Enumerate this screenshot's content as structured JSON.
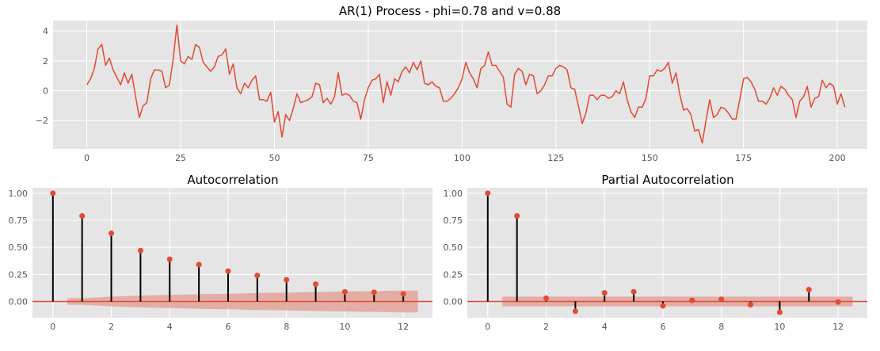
{
  "colors": {
    "background": "#e5e5e5",
    "grid": "#ffffff",
    "series": "#e24a33",
    "stem": "#000000",
    "confidence_band": "#e29a8f",
    "tick_text": "#555555"
  },
  "chart_data": [
    {
      "id": "ts",
      "type": "line",
      "title": "AR(1) Process - phi=0.78 and v=0.88",
      "xlim": [
        -9,
        208
      ],
      "ylim": [
        -3.9,
        4.7
      ],
      "xticks": [
        0,
        25,
        50,
        75,
        100,
        125,
        150,
        175,
        200
      ],
      "xtick_labels": [
        "0",
        "25",
        "50",
        "75",
        "100",
        "125",
        "150",
        "175",
        "200"
      ],
      "yticks": [
        -2,
        0,
        2,
        4
      ],
      "ytick_labels": [
        "−2",
        "0",
        "2",
        "4"
      ],
      "grid": true,
      "series": [
        {
          "x_start": 0,
          "values": [
            0.4,
            0.8,
            1.5,
            2.8,
            3.1,
            1.7,
            2.2,
            1.4,
            0.9,
            0.4,
            1.2,
            0.5,
            1.1,
            -0.4,
            -1.8,
            -1.0,
            -0.8,
            0.8,
            1.4,
            1.4,
            1.3,
            0.2,
            0.4,
            2.1,
            4.4,
            2.0,
            1.8,
            2.3,
            2.1,
            3.1,
            2.9,
            1.9,
            1.6,
            1.3,
            1.6,
            2.3,
            2.4,
            2.8,
            1.1,
            1.8,
            0.2,
            -0.2,
            0.5,
            0.2,
            0.7,
            1.0,
            -0.6,
            -0.6,
            -0.7,
            -0.1,
            -2.1,
            -1.4,
            -3.1,
            -1.6,
            -2.0,
            -1.2,
            -0.2,
            -0.8,
            -0.7,
            -0.6,
            -0.4,
            0.5,
            0.4,
            -0.8,
            -0.5,
            -0.9,
            -0.4,
            1.2,
            -0.3,
            -0.2,
            -0.3,
            -0.7,
            -0.8,
            -1.9,
            -0.6,
            0.2,
            0.7,
            0.8,
            1.1,
            -0.8,
            0.6,
            -0.3,
            0.8,
            0.6,
            1.3,
            1.6,
            1.2,
            1.9,
            1.4,
            2.0,
            0.5,
            0.4,
            0.6,
            0.3,
            0.2,
            -0.7,
            -0.7,
            -0.5,
            -0.2,
            0.2,
            0.8,
            1.9,
            1.2,
            0.8,
            0.2,
            1.5,
            1.7,
            2.6,
            1.7,
            1.7,
            1.3,
            0.9,
            -0.9,
            -1.1,
            1.1,
            1.5,
            1.3,
            0.4,
            1.1,
            1.0,
            -0.2,
            0.0,
            0.4,
            1.0,
            1.0,
            1.5,
            1.7,
            1.6,
            1.4,
            0.2,
            0.1,
            -1.0,
            -2.2,
            -1.5,
            -0.3,
            -0.3,
            -0.6,
            -0.3,
            -0.3,
            -0.5,
            -0.4,
            0.0,
            -0.2,
            0.6,
            -0.6,
            -1.4,
            -1.8,
            -1.1,
            -1.1,
            -0.5,
            1.0,
            1.0,
            1.4,
            1.3,
            1.5,
            1.9,
            0.5,
            1.2,
            -0.2,
            -1.3,
            -1.2,
            -1.6,
            -2.7,
            -2.6,
            -3.5,
            -2.0,
            -0.6,
            -1.8,
            -1.6,
            -1.1,
            -1.2,
            -1.5,
            -1.9,
            -1.9,
            -0.6,
            0.8,
            0.9,
            0.6,
            0.1,
            -0.7,
            -0.7,
            -0.9,
            -0.5,
            0.2,
            -0.3,
            0.3,
            0.1,
            -0.3,
            -0.6,
            -1.8,
            -0.7,
            -0.4,
            0.3,
            -1.1,
            -0.5,
            -0.4,
            0.7,
            0.2,
            0.5,
            0.3,
            -0.9,
            -0.2,
            -1.1
          ]
        }
      ]
    },
    {
      "id": "acf",
      "type": "stem",
      "title": "Autocorrelation",
      "xlim": [
        -0.7,
        13.0
      ],
      "ylim": [
        -0.15,
        1.05
      ],
      "xticks": [
        0,
        2,
        4,
        6,
        8,
        10,
        12
      ],
      "xtick_labels": [
        "0",
        "2",
        "4",
        "6",
        "8",
        "10",
        "12"
      ],
      "yticks": [
        0,
        0.25,
        0.5,
        0.75,
        1.0
      ],
      "ytick_labels": [
        "0.00",
        "0.25",
        "0.50",
        "0.75",
        "1.00"
      ],
      "grid": true,
      "lags": [
        0,
        1,
        2,
        3,
        4,
        5,
        6,
        7,
        8,
        9,
        10,
        11,
        12
      ],
      "values": [
        1.0,
        0.79,
        0.63,
        0.47,
        0.39,
        0.34,
        0.28,
        0.24,
        0.2,
        0.16,
        0.09,
        0.085,
        0.07
      ],
      "confidence_band": {
        "x": [
          0.5,
          1,
          2,
          3,
          4,
          5,
          6,
          7,
          8,
          9,
          10,
          11,
          12,
          12.5
        ],
        "upper": [
          0.03,
          0.03,
          0.045,
          0.055,
          0.06,
          0.068,
          0.072,
          0.078,
          0.083,
          0.088,
          0.092,
          0.096,
          0.1,
          0.1
        ],
        "lower": [
          -0.03,
          -0.03,
          -0.045,
          -0.055,
          -0.06,
          -0.068,
          -0.072,
          -0.078,
          -0.083,
          -0.088,
          -0.092,
          -0.096,
          -0.1,
          -0.1
        ]
      }
    },
    {
      "id": "pacf",
      "type": "stem",
      "title": "Partial Autocorrelation",
      "xlim": [
        -0.7,
        13.0
      ],
      "ylim": [
        -0.15,
        1.05
      ],
      "xticks": [
        0,
        2,
        4,
        6,
        8,
        10,
        12
      ],
      "xtick_labels": [
        "0",
        "2",
        "4",
        "6",
        "8",
        "10",
        "12"
      ],
      "yticks": [
        0,
        0.25,
        0.5,
        0.75,
        1.0
      ],
      "ytick_labels": [
        "0.00",
        "0.25",
        "0.50",
        "0.75",
        "1.00"
      ],
      "grid": true,
      "lags": [
        0,
        1,
        2,
        3,
        4,
        5,
        6,
        7,
        8,
        9,
        10,
        11,
        12
      ],
      "values": [
        1.0,
        0.79,
        0.03,
        -0.09,
        0.08,
        0.09,
        -0.04,
        0.01,
        0.02,
        -0.03,
        -0.1,
        0.11,
        -0.005
      ],
      "confidence_band": {
        "x": [
          0.5,
          12.5
        ],
        "upper": [
          0.045,
          0.045
        ],
        "lower": [
          -0.045,
          -0.045
        ]
      }
    }
  ]
}
